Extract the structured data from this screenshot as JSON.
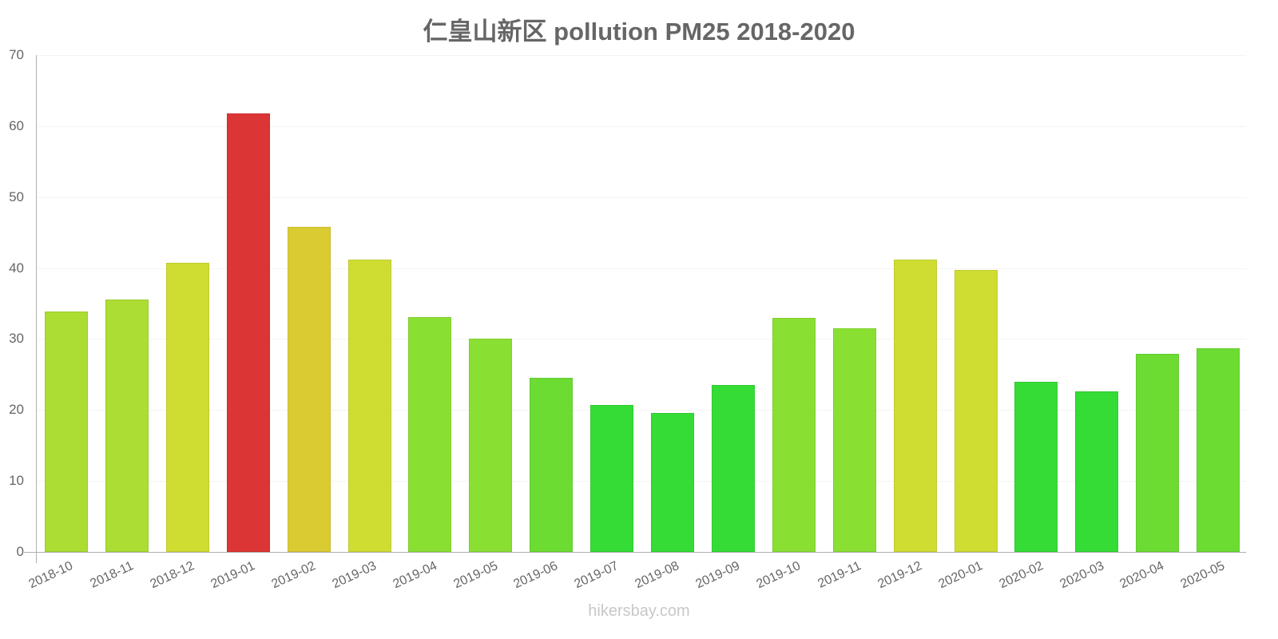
{
  "chart_data": {
    "type": "bar",
    "title": "仁皇山新区 pollution PM25 2018-2020",
    "xlabel": "",
    "ylabel": "",
    "ylim": [
      0,
      70
    ],
    "y_ticks": [
      "0",
      "10",
      "20",
      "30",
      "40",
      "50",
      "60",
      "70"
    ],
    "grid": true,
    "legend": null,
    "categories": [
      "2018-10",
      "2018-11",
      "2018-12",
      "2019-01",
      "2019-02",
      "2019-03",
      "2019-04",
      "2019-05",
      "2019-06",
      "2019-07",
      "2019-08",
      "2019-09",
      "2019-10",
      "2019-11",
      "2019-12",
      "2020-01",
      "2020-02",
      "2020-03",
      "2020-04",
      "2020-05"
    ],
    "values": [
      33.9,
      35.6,
      40.7,
      61.8,
      45.8,
      41.2,
      33.1,
      30.0,
      24.5,
      20.7,
      19.6,
      23.5,
      33.0,
      31.5,
      41.2,
      39.7,
      24.0,
      22.6,
      27.9,
      28.7
    ],
    "bar_colors": [
      "#acdd33",
      "#acdd33",
      "#cfdd33",
      "#dc3535",
      "#dbcb33",
      "#cfdd33",
      "#8adf33",
      "#8adf33",
      "#6cdc33",
      "#35dc35",
      "#35dc35",
      "#35dc35",
      "#8adf33",
      "#8adf33",
      "#cfdd33",
      "#cfdd33",
      "#35dc35",
      "#35dc35",
      "#6cdc33",
      "#6cdc33"
    ]
  },
  "watermark": "hikersbay.com"
}
